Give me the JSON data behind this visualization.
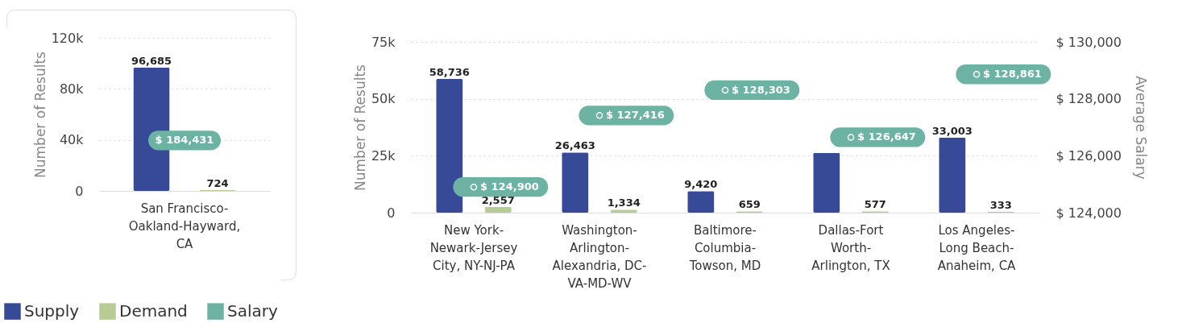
{
  "chart_data": [
    {
      "type": "bar",
      "ylabel": "Number of Results",
      "categories": [
        "San Francisco-Oakland-Hayward, CA"
      ],
      "ylim": [
        0,
        120000
      ],
      "yticks": [
        0,
        {
          "value": 40000,
          "label": "40k"
        },
        {
          "value": 80000,
          "label": "80k"
        },
        {
          "value": 120000,
          "label": "120k"
        }
      ],
      "grid": "y",
      "legend": "bottom left",
      "annotations": [
        "$ 184,431"
      ],
      "series": [
        {
          "name": "Supply",
          "color": "#374a98",
          "values": [
            96685
          ],
          "value_labels": [
            "96,685"
          ]
        },
        {
          "name": "Demand",
          "color": "#b7cc94",
          "values": [
            724
          ],
          "value_labels": [
            "724"
          ]
        },
        {
          "name": "Salary",
          "type": "scatter",
          "color": "#6db3a3",
          "values": [
            null
          ]
        }
      ]
    },
    {
      "type": "bar",
      "ylabel": "Number of Results",
      "y2label": "Average Salary",
      "categories": [
        "New York-Newark-Jersey City, NY-NJ-PA",
        "Washington-Arlington-Alexandria, DC-VA-MD-WV",
        "Baltimore-Columbia-Towson, MD",
        "Dallas-Fort Worth-Arlington, TX",
        "Los Angeles-Long Beach-Anaheim, CA"
      ],
      "ylim": [
        0,
        75000
      ],
      "yticks": [
        0,
        {
          "value": 25000,
          "label": "25k"
        },
        {
          "value": 50000,
          "label": "50k"
        },
        {
          "value": 75000,
          "label": "75k"
        }
      ],
      "y2lim": [
        124000,
        130000
      ],
      "y2ticks": [
        {
          "value": 124000,
          "label": "$ 124,000"
        },
        {
          "value": 126000,
          "label": "$ 126,000"
        },
        {
          "value": 128000,
          "label": "$ 128,000"
        },
        {
          "value": 130000,
          "label": "$ 130,000"
        }
      ],
      "grid": "y",
      "series": [
        {
          "color": "#374a98",
          "values": [
            58736,
            26463,
            9420,
            26300,
            33003
          ],
          "value_labels": [
            "58,736",
            "26,463",
            "9,420",
            null,
            "33,003"
          ]
        },
        {
          "color": "#b7cc94",
          "values": [
            2557,
            1334,
            659,
            577,
            333
          ],
          "value_labels": [
            "2,557",
            "1,334",
            "659",
            "577",
            "333"
          ]
        },
        {
          "type": "scatter",
          "axis": "y2",
          "color": "#6db3a3",
          "values": [
            124900,
            127416,
            128303,
            126647,
            128861
          ],
          "value_labels": [
            "$ 124,900",
            "$ 127,416",
            "$ 128,303",
            "$ 126,647",
            "$ 128,861"
          ]
        }
      ]
    }
  ]
}
